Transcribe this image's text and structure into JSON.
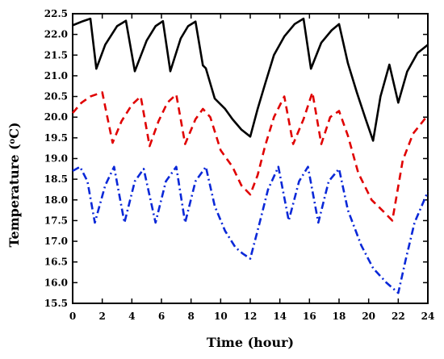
{
  "chart_data": {
    "type": "line",
    "xlabel": "Time (hour)",
    "ylabel": {
      "prefix": "Temperature (",
      "superscript": "o",
      "suffix": "C)"
    },
    "xlim": [
      0,
      24
    ],
    "ylim": [
      15.5,
      22.5
    ],
    "x_ticks": [
      0,
      2,
      4,
      6,
      8,
      10,
      12,
      14,
      16,
      18,
      20,
      22,
      24
    ],
    "y_ticks": [
      15.5,
      16.0,
      16.5,
      17.0,
      17.5,
      18.0,
      18.5,
      19.0,
      19.5,
      20.0,
      20.5,
      21.0,
      21.5,
      22.0,
      22.5
    ],
    "y_tick_labels": [
      "15.5",
      "16.0",
      "16.5",
      "17.0",
      "17.5",
      "18.0",
      "18.5",
      "19.0",
      "19.5",
      "20.0",
      "20.5",
      "21.0",
      "21.5",
      "22.0",
      "22.5"
    ],
    "grid": false,
    "legend": "none",
    "series": [
      {
        "color": "#000000",
        "style": "solid",
        "points": [
          [
            0.0,
            22.22
          ],
          [
            0.7,
            22.32
          ],
          [
            1.2,
            22.38
          ],
          [
            1.6,
            21.17
          ],
          [
            2.2,
            21.75
          ],
          [
            3.0,
            22.2
          ],
          [
            3.6,
            22.33
          ],
          [
            4.2,
            21.11
          ],
          [
            5.0,
            21.85
          ],
          [
            5.6,
            22.2
          ],
          [
            6.1,
            22.32
          ],
          [
            6.6,
            21.11
          ],
          [
            7.3,
            21.9
          ],
          [
            7.8,
            22.2
          ],
          [
            8.3,
            22.31
          ],
          [
            8.8,
            21.25
          ],
          [
            9.0,
            21.18
          ],
          [
            9.6,
            20.45
          ],
          [
            10.3,
            20.2
          ],
          [
            10.8,
            19.95
          ],
          [
            11.4,
            19.7
          ],
          [
            12.0,
            19.53
          ],
          [
            12.5,
            20.2
          ],
          [
            13.0,
            20.8
          ],
          [
            13.6,
            21.5
          ],
          [
            14.3,
            21.95
          ],
          [
            15.0,
            22.25
          ],
          [
            15.6,
            22.38
          ],
          [
            16.1,
            21.17
          ],
          [
            16.8,
            21.8
          ],
          [
            17.5,
            22.1
          ],
          [
            18.0,
            22.25
          ],
          [
            18.6,
            21.3
          ],
          [
            19.2,
            20.6
          ],
          [
            19.8,
            19.95
          ],
          [
            20.3,
            19.43
          ],
          [
            20.8,
            20.5
          ],
          [
            21.4,
            21.27
          ],
          [
            22.0,
            20.35
          ],
          [
            22.6,
            21.1
          ],
          [
            23.3,
            21.55
          ],
          [
            24.0,
            21.75
          ]
        ]
      },
      {
        "color": "#e00000",
        "style": "dash",
        "points": [
          [
            0.0,
            20.1
          ],
          [
            0.6,
            20.35
          ],
          [
            1.2,
            20.5
          ],
          [
            2.0,
            20.6
          ],
          [
            2.7,
            19.38
          ],
          [
            3.3,
            19.9
          ],
          [
            4.0,
            20.3
          ],
          [
            4.6,
            20.5
          ],
          [
            5.2,
            19.3
          ],
          [
            5.8,
            19.9
          ],
          [
            6.4,
            20.35
          ],
          [
            7.0,
            20.55
          ],
          [
            7.6,
            19.35
          ],
          [
            8.3,
            19.95
          ],
          [
            8.8,
            20.2
          ],
          [
            9.3,
            20.0
          ],
          [
            10.0,
            19.2
          ],
          [
            10.8,
            18.8
          ],
          [
            11.4,
            18.35
          ],
          [
            12.0,
            18.13
          ],
          [
            12.5,
            18.6
          ],
          [
            13.0,
            19.3
          ],
          [
            13.6,
            20.0
          ],
          [
            14.3,
            20.5
          ],
          [
            14.9,
            19.35
          ],
          [
            15.6,
            19.95
          ],
          [
            16.2,
            20.6
          ],
          [
            16.8,
            19.35
          ],
          [
            17.4,
            20.0
          ],
          [
            18.0,
            20.15
          ],
          [
            18.6,
            19.55
          ],
          [
            19.3,
            18.65
          ],
          [
            20.2,
            18.0
          ],
          [
            21.0,
            17.72
          ],
          [
            21.6,
            17.5
          ],
          [
            22.3,
            18.95
          ],
          [
            23.0,
            19.6
          ],
          [
            24.0,
            20.05
          ]
        ]
      },
      {
        "color": "#0a28d8",
        "style": "dash-dot",
        "points": [
          [
            0.0,
            18.7
          ],
          [
            0.5,
            18.8
          ],
          [
            1.0,
            18.45
          ],
          [
            1.5,
            17.45
          ],
          [
            2.2,
            18.35
          ],
          [
            2.8,
            18.8
          ],
          [
            3.5,
            17.45
          ],
          [
            4.2,
            18.45
          ],
          [
            4.8,
            18.75
          ],
          [
            5.6,
            17.45
          ],
          [
            6.3,
            18.45
          ],
          [
            7.0,
            18.8
          ],
          [
            7.6,
            17.45
          ],
          [
            8.3,
            18.45
          ],
          [
            9.0,
            18.8
          ],
          [
            9.6,
            17.85
          ],
          [
            10.3,
            17.25
          ],
          [
            11.0,
            16.85
          ],
          [
            11.5,
            16.7
          ],
          [
            12.0,
            16.58
          ],
          [
            12.6,
            17.4
          ],
          [
            13.2,
            18.25
          ],
          [
            13.9,
            18.8
          ],
          [
            14.6,
            17.5
          ],
          [
            15.3,
            18.45
          ],
          [
            15.9,
            18.8
          ],
          [
            16.6,
            17.45
          ],
          [
            17.3,
            18.45
          ],
          [
            18.0,
            18.75
          ],
          [
            18.6,
            17.75
          ],
          [
            19.5,
            16.9
          ],
          [
            20.3,
            16.35
          ],
          [
            21.2,
            16.0
          ],
          [
            22.0,
            15.75
          ],
          [
            22.5,
            16.55
          ],
          [
            23.1,
            17.45
          ],
          [
            24.0,
            18.2
          ]
        ]
      }
    ]
  }
}
